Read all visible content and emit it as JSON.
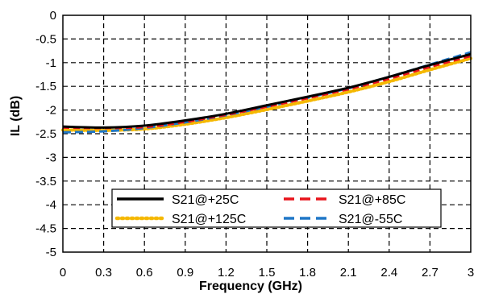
{
  "chart_data": {
    "type": "line",
    "xlabel": "Frequency (GHz)",
    "ylabel": "IL (dB)",
    "xlim": [
      0,
      3
    ],
    "ylim": [
      -5,
      0
    ],
    "xticks": [
      "0",
      "0.3",
      "0.6",
      "0.9",
      "1.2",
      "1.5",
      "1.8",
      "2.1",
      "2.4",
      "2.7",
      "3"
    ],
    "yticks": [
      "0",
      "-0.5",
      "-1",
      "-1.5",
      "-2",
      "-2.5",
      "-3",
      "-3.5",
      "-4",
      "-4.5",
      "-5"
    ],
    "grid": true,
    "legend_position": "bottom-center",
    "series": [
      {
        "name": "S21@+25C",
        "color": "#000000",
        "style": "solid",
        "x": [
          0,
          0.3,
          0.6,
          0.9,
          1.2,
          1.5,
          1.8,
          2.1,
          2.4,
          2.7,
          3.0
        ],
        "y": [
          -2.35,
          -2.37,
          -2.33,
          -2.22,
          -2.08,
          -1.9,
          -1.72,
          -1.53,
          -1.3,
          -1.05,
          -0.82
        ]
      },
      {
        "name": "S21@+85C",
        "color": "#e8141b",
        "style": "dashed",
        "x": [
          0,
          0.3,
          0.6,
          0.9,
          1.2,
          1.5,
          1.8,
          2.1,
          2.4,
          2.7,
          3.0
        ],
        "y": [
          -2.37,
          -2.38,
          -2.36,
          -2.25,
          -2.1,
          -1.93,
          -1.75,
          -1.56,
          -1.34,
          -1.09,
          -0.86
        ]
      },
      {
        "name": "S21@+125C",
        "color": "#f5b800",
        "style": "dotted",
        "x": [
          0,
          0.3,
          0.6,
          0.9,
          1.2,
          1.5,
          1.8,
          2.1,
          2.4,
          2.7,
          3.0
        ],
        "y": [
          -2.42,
          -2.43,
          -2.4,
          -2.3,
          -2.16,
          -1.99,
          -1.81,
          -1.62,
          -1.4,
          -1.15,
          -0.91
        ]
      },
      {
        "name": "S21@-55C",
        "color": "#1f77c7",
        "style": "dashed",
        "x": [
          0,
          0.3,
          0.6,
          0.9,
          1.2,
          1.5,
          1.8,
          2.1,
          2.4,
          2.7,
          3.0
        ],
        "y": [
          -2.47,
          -2.45,
          -2.38,
          -2.26,
          -2.11,
          -1.93,
          -1.74,
          -1.54,
          -1.3,
          -1.04,
          -0.78
        ]
      }
    ]
  }
}
